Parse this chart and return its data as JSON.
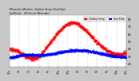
{
  "title": "Milwaukee Weather  Outdoor Temp / Dew Point",
  "subtitle": "by Minute   (24 Hours) (Alternate)",
  "bg_color": "#c8c8c8",
  "plot_bg_color": "#ffffff",
  "grid_color": "#aaaaaa",
  "text_color": "#000000",
  "temp_color": "#ff0000",
  "dew_color": "#0000ff",
  "legend_temp": "Outdoor Temp",
  "legend_dew": "Dew Point",
  "ylim": [
    20,
    90
  ],
  "yticks": [
    25,
    35,
    45,
    55,
    65,
    75,
    85
  ],
  "minutes": 1440
}
